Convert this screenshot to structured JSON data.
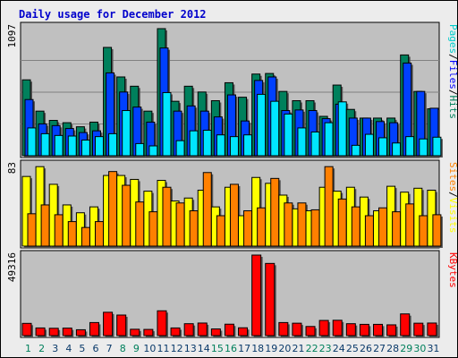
{
  "chart_data": {
    "type": "bar",
    "title": "Daily usage for December 2012",
    "categories": [
      "1",
      "2",
      "3",
      "4",
      "5",
      "6",
      "7",
      "8",
      "9",
      "10",
      "11",
      "12",
      "13",
      "14",
      "15",
      "16",
      "17",
      "18",
      "19",
      "20",
      "21",
      "22",
      "23",
      "24",
      "25",
      "26",
      "27",
      "28",
      "29",
      "30",
      "31"
    ],
    "weekend_days": [
      "1",
      "2",
      "8",
      "9",
      "15",
      "16",
      "22",
      "23",
      "29",
      "30"
    ],
    "panels": [
      {
        "name": "hits-files-pages",
        "max_label": "1097",
        "ylim": [
          0,
          1097
        ],
        "legend": [
          "Pages",
          "Files",
          "Hits"
        ],
        "legend_separator": "/",
        "legend_colors": [
          "#00cccc",
          "#0000ff",
          "#00805c"
        ],
        "series": [
          {
            "name": "Hits",
            "color": "#00805c",
            "values": [
              655,
              385,
              305,
              285,
              250,
              290,
              935,
              680,
              600,
              385,
              1097,
              470,
              600,
              550,
              475,
              630,
              505,
              705,
              710,
              555,
              475,
              475,
              340,
              610,
              400,
              325,
              325,
              325,
              870,
              555,
              405
            ]
          },
          {
            "name": "Files",
            "color": "#0040ff",
            "values": [
              485,
              275,
              260,
              235,
              200,
              215,
              715,
              550,
              420,
              290,
              930,
              385,
              430,
              385,
              335,
              525,
              300,
              650,
              680,
              390,
              395,
              390,
              320,
              445,
              325,
              325,
              295,
              285,
              800,
              555,
              410
            ]
          },
          {
            "name": "Pages",
            "color": "#00e5ff",
            "values": [
              240,
              190,
              175,
              170,
              135,
              165,
              190,
              390,
              105,
              85,
              545,
              130,
              215,
              220,
              180,
              165,
              180,
              530,
              470,
              360,
              240,
              205,
              285,
              465,
              90,
              185,
              155,
              110,
              165,
              145,
              160
            ]
          }
        ]
      },
      {
        "name": "visits-sites",
        "max_label": "83",
        "ylim": [
          0,
          83
        ],
        "legend": [
          "Sites",
          "Visits"
        ],
        "legend_separator": "/",
        "legend_colors": [
          "#ff8000",
          "#ffff00"
        ],
        "series": [
          {
            "name": "Visits",
            "color": "#ffff00",
            "values": [
              71,
              81,
              63,
              42,
              34,
              40,
              72,
              72,
              68,
              56,
              67,
              46,
              49,
              57,
              40,
              60,
              31,
              70,
              64,
              52,
              38,
              36,
              60,
              56,
              60,
              50,
              36,
              61,
              55,
              59,
              57
            ]
          },
          {
            "name": "Sites",
            "color": "#ff8000",
            "values": [
              33,
              42,
              32,
              25,
              19,
              25,
              76,
              62,
              45,
              35,
              60,
              44,
              36,
              75,
              31,
              63,
              36,
              39,
              69,
              44,
              44,
              37,
              81,
              48,
              40,
              31,
              39,
              35,
              43,
              31,
              32
            ]
          }
        ]
      },
      {
        "name": "kbytes",
        "max_label": "49316",
        "ylim": [
          0,
          49316
        ],
        "legend": [
          "KBytes"
        ],
        "legend_separator": "/",
        "legend_colors": [
          "#ff0000"
        ],
        "series": [
          {
            "name": "KBytes",
            "color": "#ff0000",
            "values": [
              7500,
              4700,
              4500,
              4600,
              3600,
              8000,
              14300,
              12600,
              3900,
              3800,
              15200,
              4700,
              7300,
              7700,
              4100,
              7000,
              4800,
              49316,
              44200,
              8000,
              7600,
              5600,
              9300,
              9400,
              7300,
              6900,
              6900,
              6600,
              13300,
              7600,
              7700
            ]
          }
        ]
      }
    ],
    "colors": {
      "panel_bg": "#c0c0c0",
      "page_bg": "#ececec",
      "title": "#0000cc",
      "tick_weekday": "#0a3a6a",
      "tick_weekend": "#00805c"
    }
  }
}
